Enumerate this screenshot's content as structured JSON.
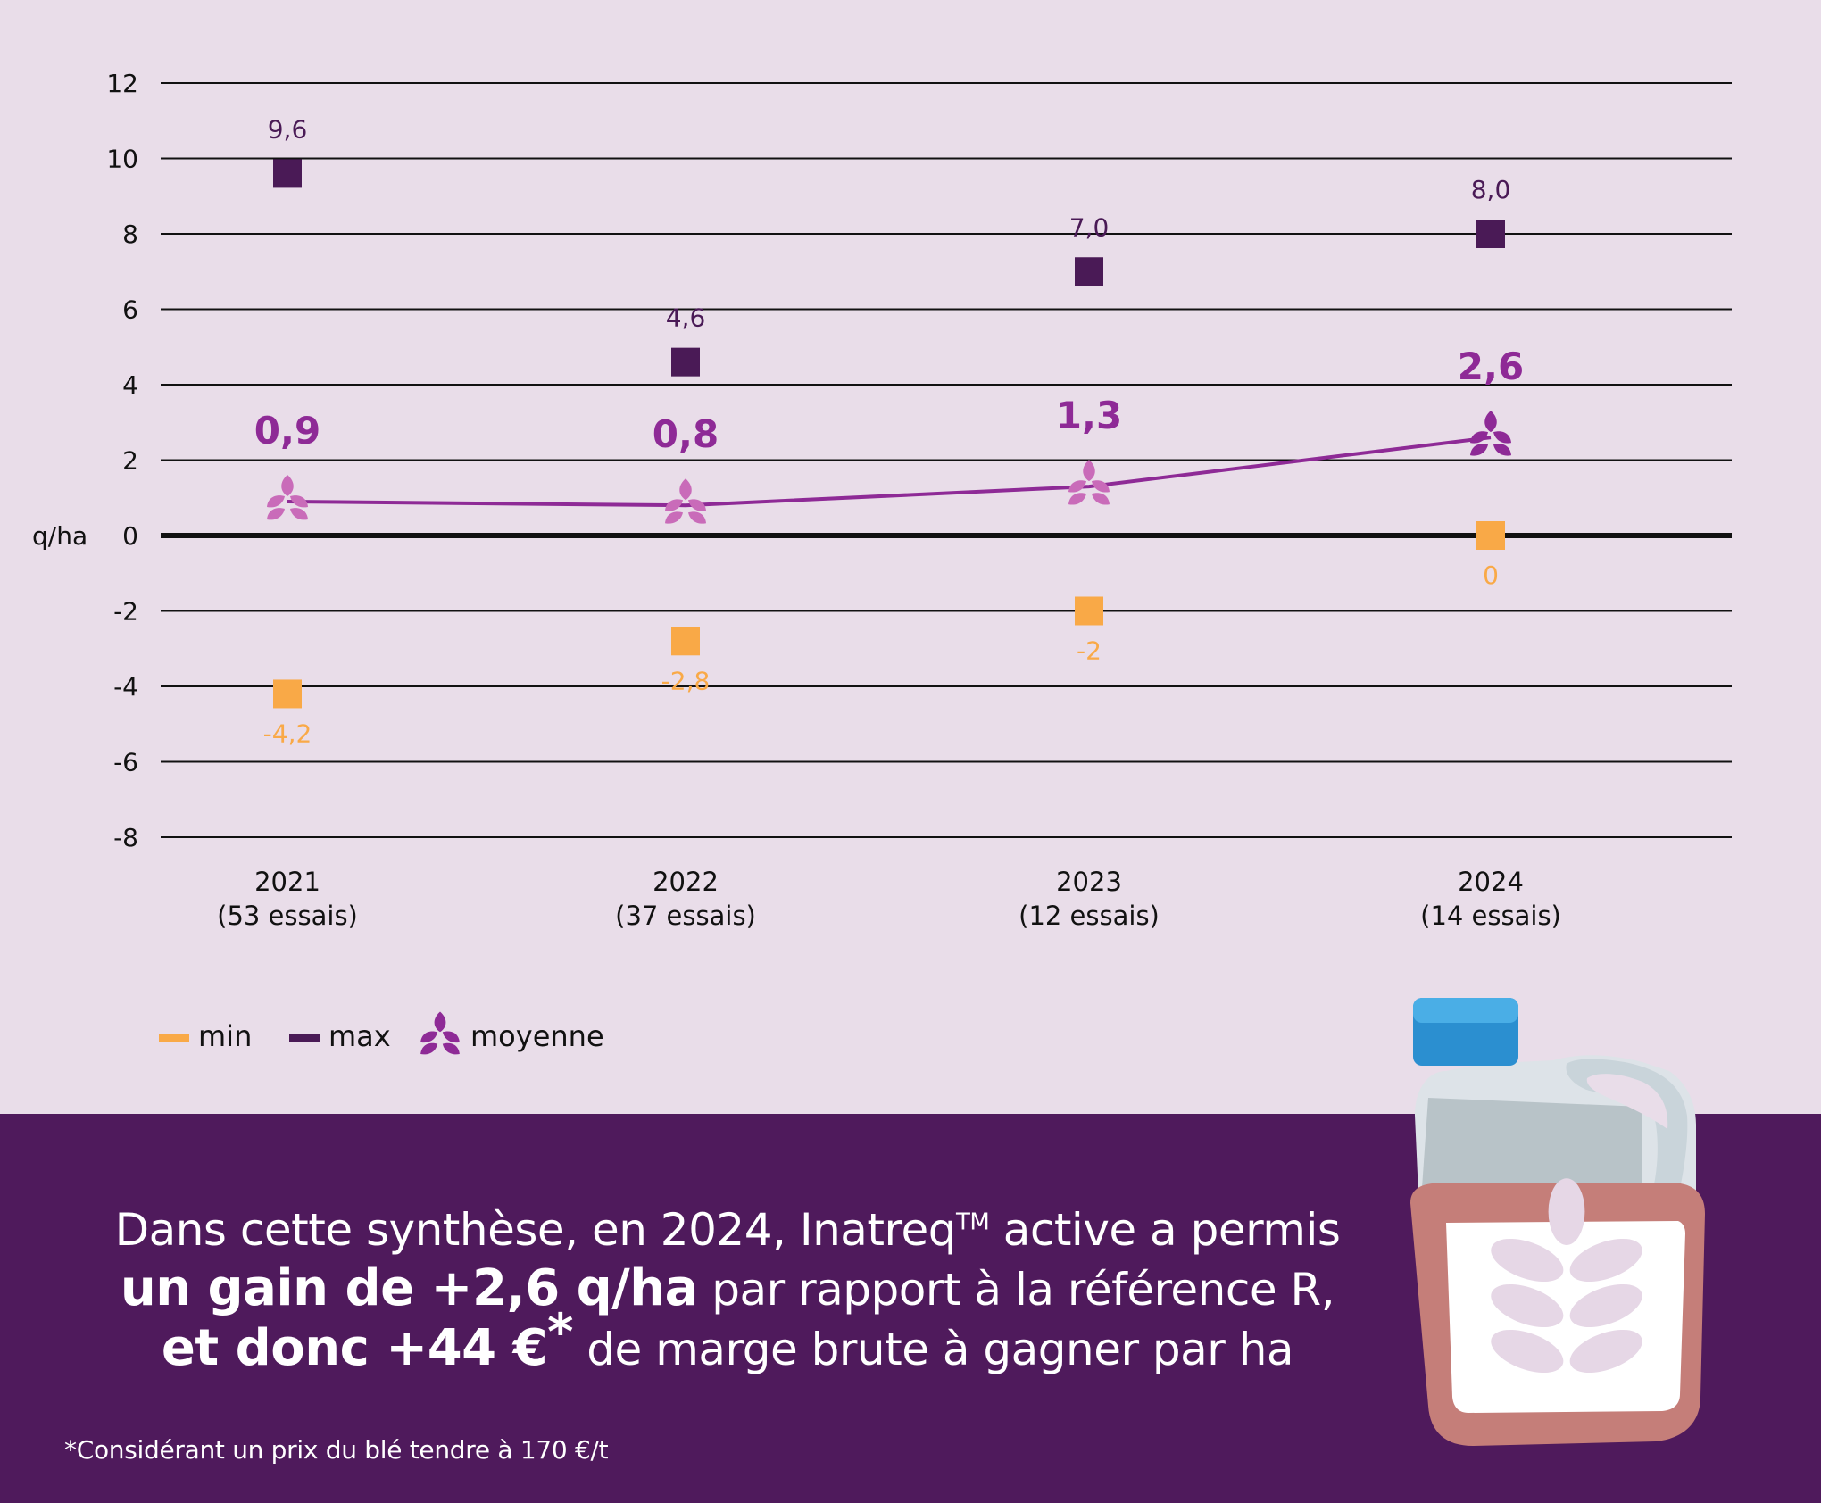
{
  "chart_data": {
    "type": "scatter",
    "ylabel": "q/ha",
    "ylim": [
      -8,
      12
    ],
    "yticks": [
      "12",
      "10",
      "8",
      "6",
      "4",
      "2",
      "0",
      "-2",
      "-4",
      "-6",
      "-8"
    ],
    "categories": [
      "2021",
      "2022",
      "2023",
      "2024"
    ],
    "category_sublabels": [
      "(53 essais)",
      "(37 essais)",
      "(12 essais)",
      "(14 essais)"
    ],
    "grid": true,
    "legend_position": "bottom-left",
    "series": [
      {
        "name": "min",
        "marker": "square",
        "color": "#f9a947",
        "values": [
          -4.2,
          -2.8,
          -2,
          0
        ],
        "labels": [
          "-4,2",
          "-2,8",
          "-2",
          "0"
        ]
      },
      {
        "name": "max",
        "marker": "square",
        "color": "#4a1a56",
        "values": [
          9.6,
          4.6,
          7.0,
          8.0
        ],
        "labels": [
          "9,6",
          "4,6",
          "7,0",
          "8,0"
        ]
      },
      {
        "name": "moyenne",
        "marker": "wheat-icon",
        "line": true,
        "color": "#8e2a96",
        "values": [
          0.9,
          0.8,
          1.3,
          2.6
        ],
        "labels": [
          "0,9",
          "0,8",
          "1,3",
          "2,6"
        ]
      }
    ]
  },
  "colors": {
    "background": "#e9dde9",
    "banner": "#4f1a5c",
    "min": "#f9a947",
    "max": "#4a1a56",
    "moyenne": "#8e2a96",
    "moyenne_light": "#c96bb9"
  },
  "icons": {
    "moyenne_marker": "wheat-icon",
    "product": "bottle-icon"
  },
  "message": {
    "line1": "Dans cette synthèse, en 2024, Inatreq",
    "line1_sup": "TM",
    "line1_end": " active a permis",
    "line2_bold": "un gain de +2,6 q/ha",
    "line2_rest": " par rapport à la référence R,",
    "line3_bold": "et donc +44 €",
    "line3_sup": "*",
    "line3_rest": " de marge brute à gagner par ha"
  },
  "footnote": "*Considérant un prix du blé tendre à 170 €/t"
}
